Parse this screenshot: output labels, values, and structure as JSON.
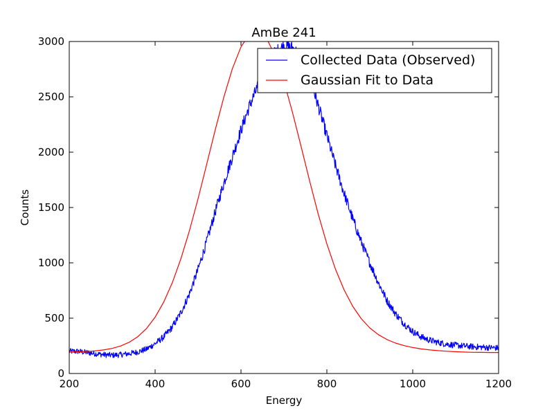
{
  "chart_data": {
    "type": "line",
    "title": "AmBe 241",
    "xlabel": "Energy",
    "ylabel": "Counts",
    "xlim": [
      200,
      1200
    ],
    "ylim": [
      0,
      3000
    ],
    "xticks": [
      200,
      400,
      600,
      800,
      1000,
      1200
    ],
    "yticks": [
      0,
      500,
      1000,
      1500,
      2000,
      2500,
      3000
    ],
    "grid": false,
    "legend_position": "top-right",
    "series": [
      {
        "name": "Collected Data (Observed)",
        "color": "#0000ff",
        "style": "noisy",
        "x": [
          200,
          220,
          240,
          260,
          280,
          300,
          320,
          340,
          360,
          380,
          400,
          420,
          440,
          460,
          480,
          500,
          520,
          540,
          560,
          580,
          600,
          620,
          640,
          660,
          680,
          700,
          720,
          740,
          760,
          780,
          800,
          820,
          840,
          860,
          880,
          900,
          920,
          940,
          960,
          980,
          1000,
          1020,
          1040,
          1060,
          1080,
          1100,
          1120,
          1140,
          1160,
          1180,
          1200
        ],
        "y": [
          200,
          200,
          190,
          180,
          170,
          165,
          170,
          180,
          195,
          220,
          270,
          330,
          420,
          550,
          720,
          940,
          1190,
          1460,
          1720,
          1960,
          2200,
          2420,
          2600,
          2780,
          2900,
          2960,
          2940,
          2860,
          2680,
          2420,
          2150,
          1880,
          1630,
          1400,
          1190,
          1000,
          820,
          660,
          540,
          450,
          380,
          330,
          300,
          280,
          265,
          255,
          248,
          242,
          238,
          234,
          230
        ]
      },
      {
        "name": "Gaussian Fit to Data",
        "color": "#ff0000",
        "style": "smooth",
        "x": [
          200,
          220,
          240,
          260,
          280,
          300,
          320,
          340,
          360,
          380,
          400,
          420,
          440,
          460,
          480,
          500,
          520,
          540,
          560,
          580,
          600,
          620,
          640,
          660,
          680,
          700,
          720,
          740,
          760,
          780,
          800,
          820,
          840,
          860,
          880,
          900,
          920,
          940,
          960,
          980,
          1000,
          1020,
          1040,
          1060,
          1080,
          1100,
          1120,
          1140,
          1160,
          1180,
          1200
        ],
        "y": [
          194,
          196,
          199,
          204,
          213,
          227,
          249,
          283,
          334,
          407,
          509,
          645,
          820,
          1036,
          1291,
          1579,
          1888,
          2201,
          2497,
          2755,
          2951,
          3068,
          3094,
          3025,
          2868,
          2640,
          2359,
          2051,
          1738,
          1439,
          1171,
          943,
          757,
          609,
          496,
          412,
          351,
          307,
          275,
          252,
          235,
          222,
          213,
          206,
          201,
          197,
          194,
          192,
          191,
          190,
          190
        ]
      }
    ]
  }
}
